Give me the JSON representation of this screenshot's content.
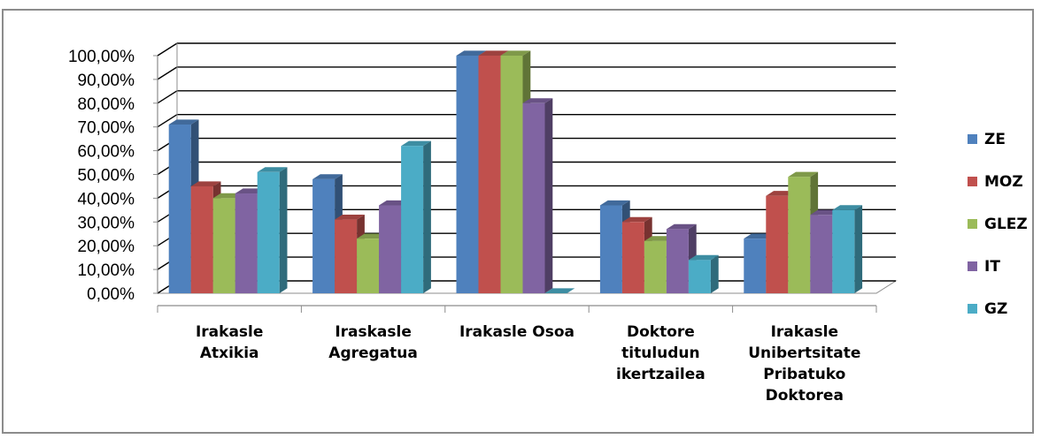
{
  "chart_data": {
    "type": "bar",
    "title": "",
    "xlabel": "",
    "ylabel": "",
    "ylim": [
      0,
      100
    ],
    "y_ticks": [
      "0,00%",
      "10,00%",
      "20,00%",
      "30,00%",
      "40,00%",
      "50,00%",
      "60,00%",
      "70,00%",
      "80,00%",
      "90,00%",
      "100,00%"
    ],
    "categories": [
      [
        "Irakasle",
        "Atxikia"
      ],
      [
        "Iraskasle",
        "Agregatua"
      ],
      [
        "Irakasle Osoa"
      ],
      [
        "Doktore",
        "tituludun",
        "ikertzailea"
      ],
      [
        "Irakasle",
        "Unibertsitate",
        "Pribatuko",
        "Doktorea"
      ]
    ],
    "series": [
      {
        "name": "ZE",
        "color": "#4f81bd",
        "values": [
          71,
          48,
          100,
          37,
          23
        ]
      },
      {
        "name": "MOZ",
        "color": "#c0504d",
        "values": [
          45,
          31,
          100,
          30,
          41
        ]
      },
      {
        "name": "GLEZ",
        "color": "#9bbb59",
        "values": [
          40,
          23,
          100,
          22,
          49
        ]
      },
      {
        "name": "IT",
        "color": "#8064a2",
        "values": [
          42,
          37,
          80,
          27,
          33
        ]
      },
      {
        "name": "GZ",
        "color": "#4bacc6",
        "values": [
          51,
          62,
          0,
          14,
          35
        ]
      }
    ],
    "grid": true,
    "legend": "right",
    "style": "3d-clustered-column"
  }
}
